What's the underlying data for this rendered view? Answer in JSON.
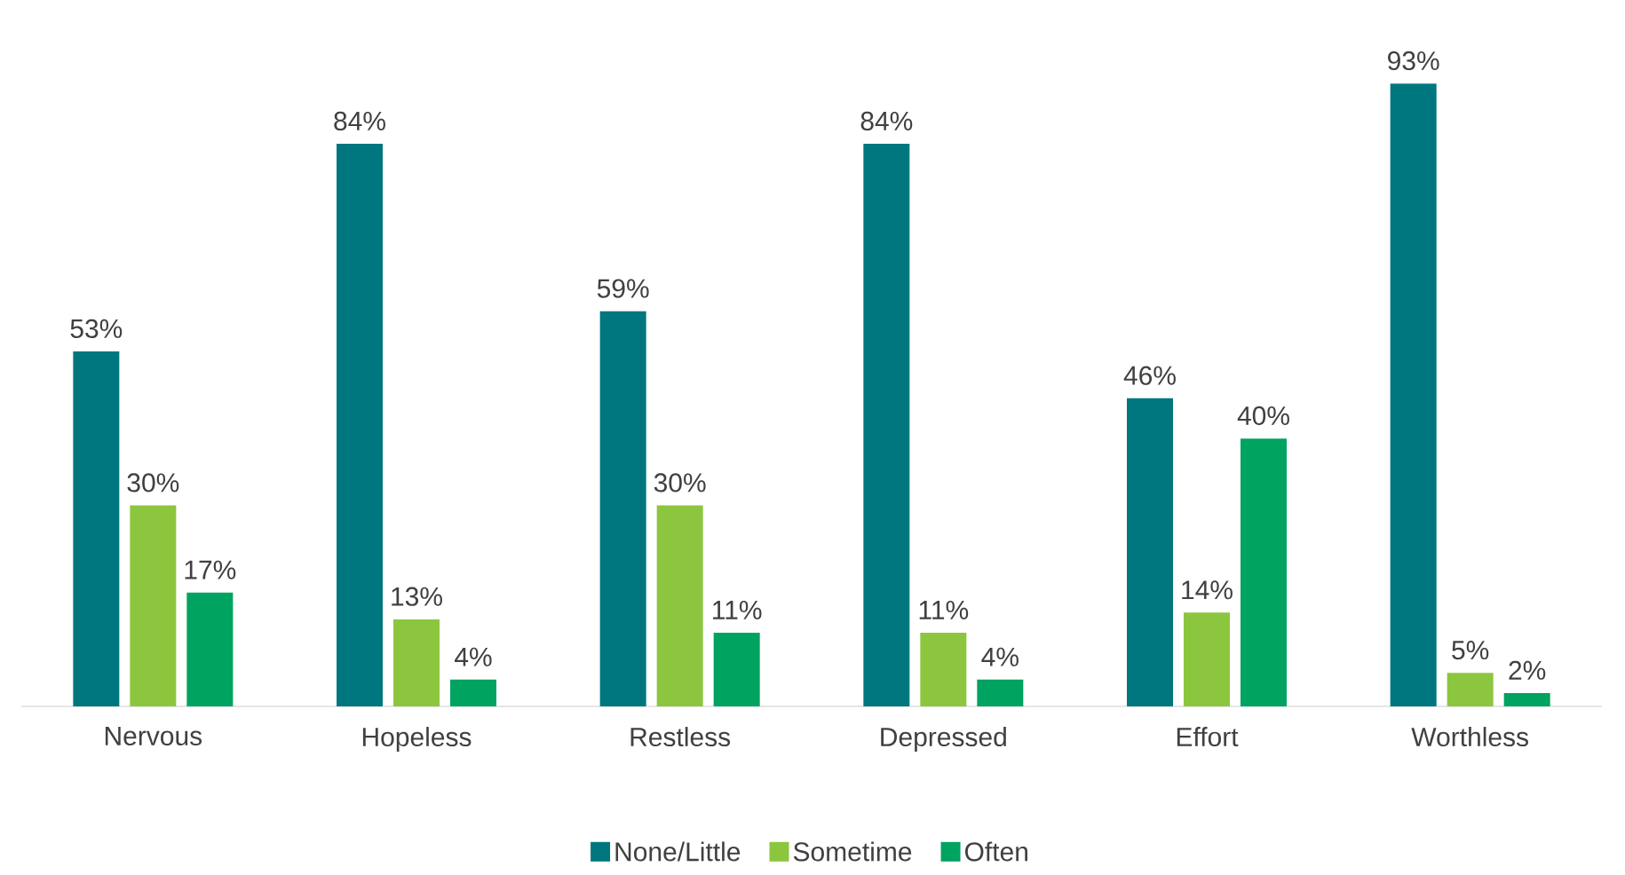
{
  "chart_data": {
    "type": "bar",
    "categories": [
      "Nervous",
      "Hopeless",
      "Restless",
      "Depressed",
      "Effort",
      "Worthless"
    ],
    "series": [
      {
        "name": "None/Little",
        "color": "#00777f",
        "values": [
          53,
          84,
          59,
          84,
          46,
          93
        ],
        "value_labels": [
          "53%",
          "84%",
          "59%",
          "84%",
          "46%",
          "93%"
        ]
      },
      {
        "name": "Sometime",
        "color": "#8cc63e",
        "values": [
          30,
          13,
          30,
          11,
          14,
          5
        ],
        "value_labels": [
          "30%",
          "13%",
          "30%",
          "11%",
          "14%",
          "5%"
        ]
      },
      {
        "name": "Often",
        "color": "#00a35f",
        "values": [
          17,
          4,
          11,
          4,
          40,
          2
        ],
        "value_labels": [
          "17%",
          "4%",
          "11%",
          "4%",
          "40%",
          "2%"
        ]
      }
    ],
    "legend": "bottom"
  }
}
